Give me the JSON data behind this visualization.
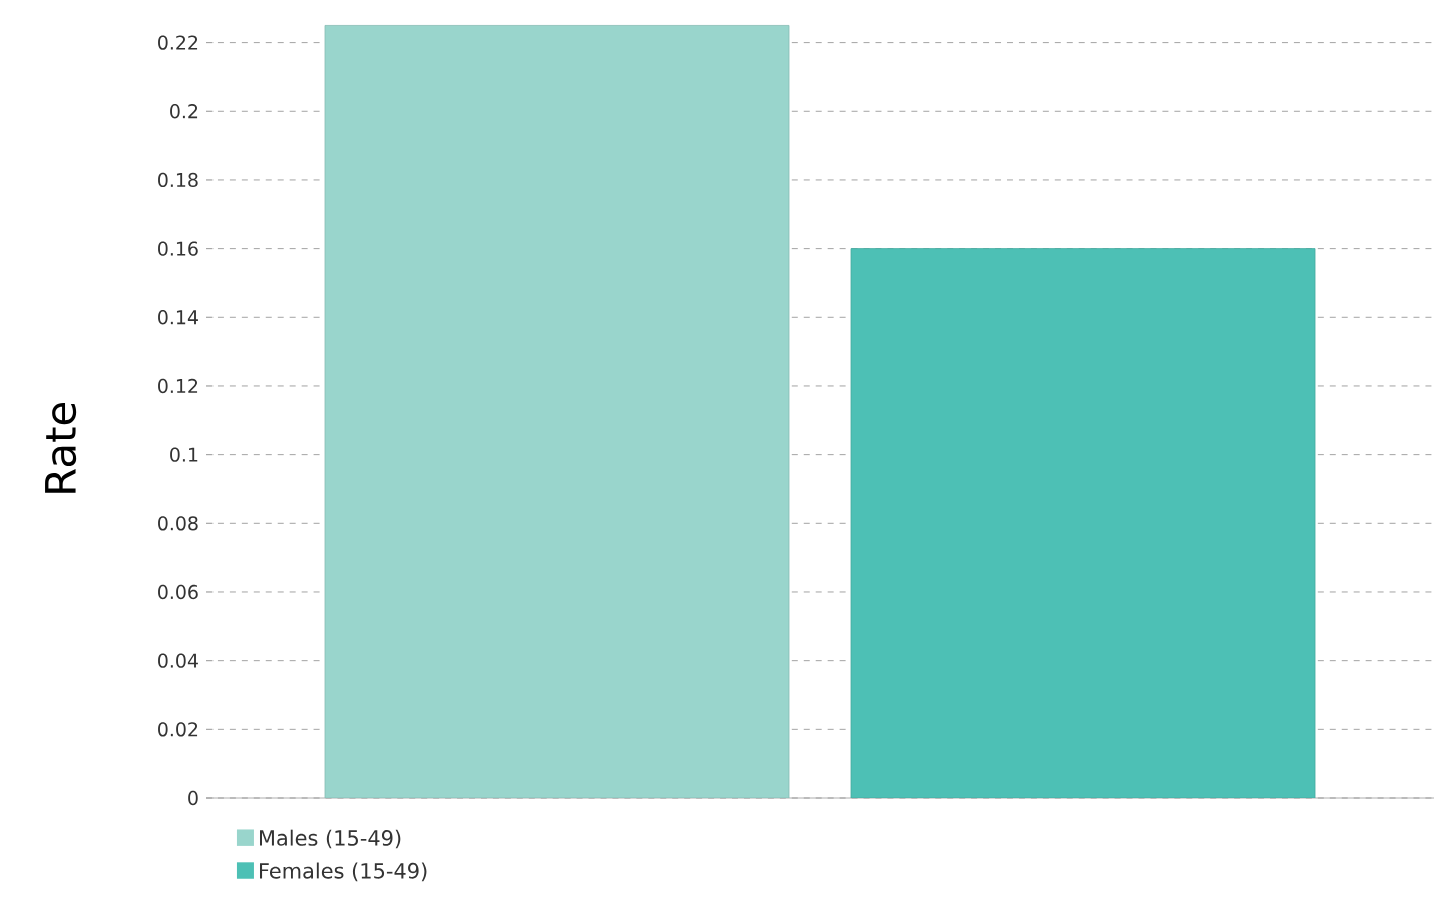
{
  "chart_data": {
    "type": "bar",
    "ylabel": "Rate",
    "categories": [
      null
    ],
    "series": [
      {
        "name": "Males (15-49)",
        "color": "#99d5cc",
        "values": [
          0.225
        ]
      },
      {
        "name": "Females (15-49)",
        "color": "#4dc0b5",
        "values": [
          0.16
        ]
      }
    ],
    "ylim": [
      0,
      0.226
    ],
    "yticks": [
      0,
      0.02,
      0.04,
      0.06,
      0.08,
      0.1,
      0.12,
      0.14,
      0.16,
      0.18,
      0.2,
      0.22
    ],
    "grid": "y",
    "legend": "bottom left"
  }
}
